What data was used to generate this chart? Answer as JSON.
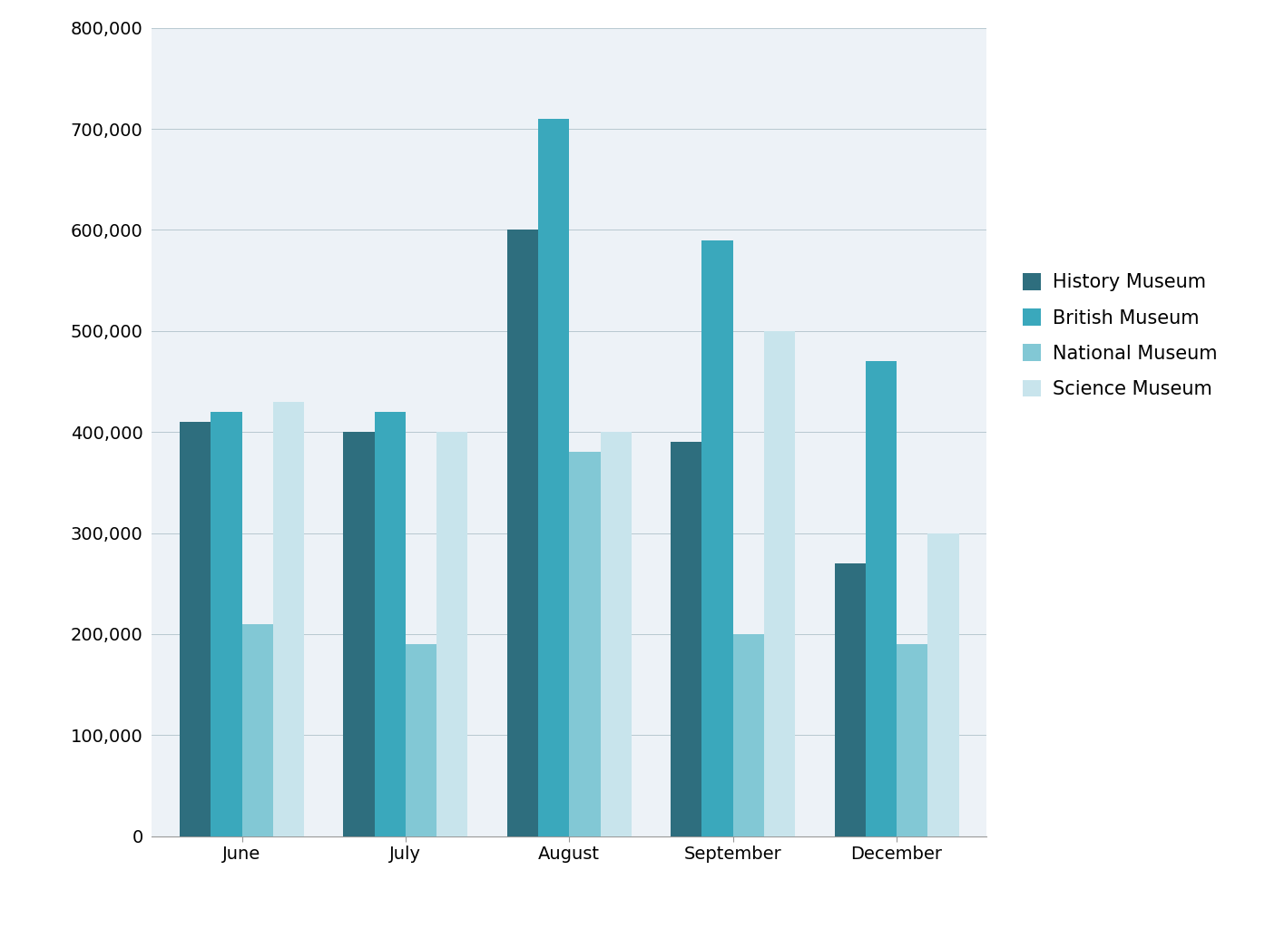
{
  "categories": [
    "June",
    "July",
    "August",
    "September",
    "December"
  ],
  "series": [
    {
      "name": "History Museum",
      "color": "#2E6E7E",
      "values": [
        410000,
        400000,
        600000,
        390000,
        270000
      ]
    },
    {
      "name": "British Museum",
      "color": "#3AA8BC",
      "values": [
        420000,
        420000,
        710000,
        590000,
        470000
      ]
    },
    {
      "name": "National Museum",
      "color": "#82C8D5",
      "values": [
        210000,
        190000,
        380000,
        200000,
        190000
      ]
    },
    {
      "name": "Science Museum",
      "color": "#C8E4EC",
      "values": [
        430000,
        400000,
        400000,
        500000,
        300000
      ]
    }
  ],
  "ylim": [
    0,
    800000
  ],
  "ytick_interval": 100000,
  "plot_area_color": "#EDF2F7",
  "outer_background": "#FFFFFF",
  "legend_fontsize": 15,
  "tick_fontsize": 14,
  "bar_width": 0.19,
  "group_width": 0.85
}
